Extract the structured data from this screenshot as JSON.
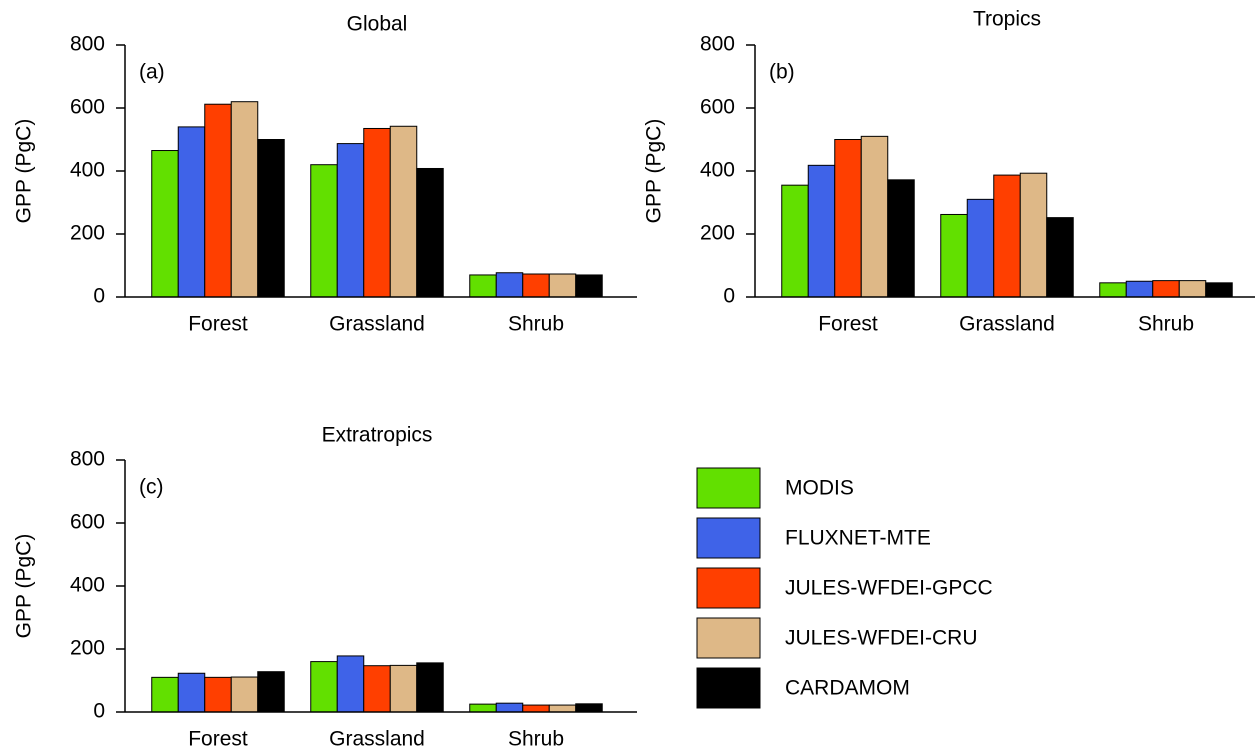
{
  "chart_data": [
    {
      "type": "bar",
      "title": "Global",
      "annotation": "(a)",
      "ylabel": "GPP (PgC)",
      "categories": [
        "Forest",
        "Grassland",
        "Shrub"
      ],
      "series": [
        {
          "name": "MODIS",
          "color": "#62e000",
          "values": [
            465,
            420,
            70
          ]
        },
        {
          "name": "FLUXNET-MTE",
          "color": "#3f63e8",
          "values": [
            540,
            487,
            77
          ]
        },
        {
          "name": "JULES-WFDEI-GPCC",
          "color": "#ff3f00",
          "values": [
            612,
            535,
            73
          ]
        },
        {
          "name": "JULES-WFDEI-CRU",
          "color": "#deb887",
          "values": [
            620,
            542,
            73
          ]
        },
        {
          "name": "CARDAMOM",
          "color": "#000000",
          "values": [
            500,
            408,
            70
          ]
        }
      ],
      "ylim": [
        0,
        800
      ],
      "yticks": [
        0,
        200,
        400,
        600,
        800
      ]
    },
    {
      "type": "bar",
      "title": "Tropics",
      "annotation": "(b)",
      "ylabel": "GPP (PgC)",
      "categories": [
        "Forest",
        "Grassland",
        "Shrub"
      ],
      "series": [
        {
          "name": "MODIS",
          "color": "#62e000",
          "values": [
            355,
            262,
            45
          ]
        },
        {
          "name": "FLUXNET-MTE",
          "color": "#3f63e8",
          "values": [
            418,
            310,
            50
          ]
        },
        {
          "name": "JULES-WFDEI-GPCC",
          "color": "#ff3f00",
          "values": [
            500,
            387,
            52
          ]
        },
        {
          "name": "JULES-WFDEI-CRU",
          "color": "#deb887",
          "values": [
            510,
            393,
            52
          ]
        },
        {
          "name": "CARDAMOM",
          "color": "#000000",
          "values": [
            372,
            252,
            45
          ]
        }
      ],
      "ylim": [
        0,
        800
      ],
      "yticks": [
        0,
        200,
        400,
        600,
        800
      ]
    },
    {
      "type": "bar",
      "title": "Extratropics",
      "annotation": "(c)",
      "ylabel": "GPP (PgC)",
      "categories": [
        "Forest",
        "Grassland",
        "Shrub"
      ],
      "series": [
        {
          "name": "MODIS",
          "color": "#62e000",
          "values": [
            110,
            160,
            25
          ]
        },
        {
          "name": "FLUXNET-MTE",
          "color": "#3f63e8",
          "values": [
            123,
            178,
            28
          ]
        },
        {
          "name": "JULES-WFDEI-GPCC",
          "color": "#ff3f00",
          "values": [
            110,
            147,
            22
          ]
        },
        {
          "name": "JULES-WFDEI-CRU",
          "color": "#deb887",
          "values": [
            111,
            148,
            22
          ]
        },
        {
          "name": "CARDAMOM",
          "color": "#000000",
          "values": [
            128,
            156,
            26
          ]
        }
      ],
      "ylim": [
        0,
        800
      ],
      "yticks": [
        0,
        200,
        400,
        600,
        800
      ]
    }
  ]
}
